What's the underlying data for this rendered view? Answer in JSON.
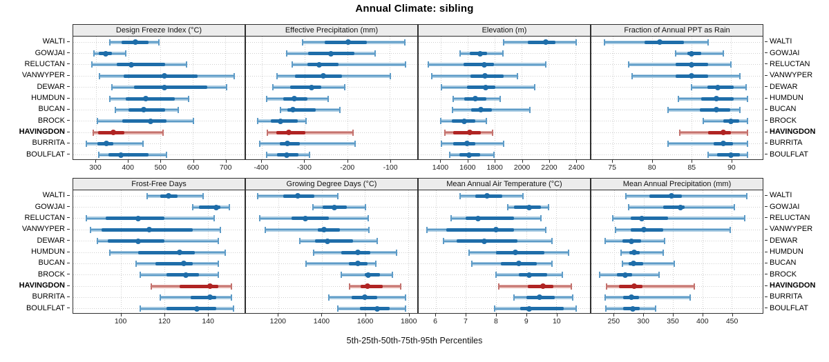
{
  "title": "Annual Climate: sibling",
  "caption": "5th-25th-50th-75th-95th Percentiles",
  "colors": {
    "blue": "#1E6DA9",
    "blue_light": "#A9CBE2",
    "blue_mid": "#5D9BC7",
    "red": "#B02423",
    "red_light": "#E3AEA9",
    "red_mid": "#C4726E",
    "grid": "#CDCDCD",
    "strip_bg": "#ECECEC",
    "border": "#2E2E2E"
  },
  "chart_data": {
    "type": "scatter",
    "subtype": "trellis percentile dot-plot (whisker 5-95, thick band 25-75, dot = median)",
    "title": "Annual Climate: sibling",
    "caption": "5th-25th-50th-75th-95th Percentiles",
    "percentile_labels": [
      "5th",
      "25th",
      "50th",
      "75th",
      "95th"
    ],
    "rows": [
      "WALTI",
      "GOWJAI",
      "RELUCTAN",
      "VANWYPER",
      "DEWAR",
      "HUMDUN",
      "BUCAN",
      "BROCK",
      "HAVINGDON",
      "BURRITA",
      "BOULFLAT"
    ],
    "highlight_row": "HAVINGDON",
    "legend_position": "none",
    "grid": "dotted",
    "panels": [
      {
        "title": "Design Freeze Index (°C)",
        "slug": "design-freeze-index",
        "xlim": [
          230,
          760
        ],
        "ticks": [
          300,
          400,
          500,
          600,
          700
        ],
        "values": [
          [
            343,
            379,
            423,
            463,
            496
          ],
          [
            294,
            310,
            330,
            350,
            393
          ],
          [
            287,
            365,
            410,
            515,
            580
          ],
          [
            312,
            386,
            512,
            614,
            728
          ],
          [
            350,
            417,
            512,
            645,
            704
          ],
          [
            344,
            393,
            454,
            544,
            586
          ],
          [
            360,
            402,
            449,
            515,
            554
          ],
          [
            304,
            382,
            470,
            519,
            602
          ],
          [
            291,
            308,
            354,
            389,
            507
          ],
          [
            270,
            304,
            332,
            354,
            445
          ],
          [
            310,
            340,
            377,
            463,
            519
          ]
        ]
      },
      {
        "title": "Effective Precipitation (mm)",
        "slug": "effective-precipitation",
        "xlim": [
          -437,
          -36
        ],
        "ticks": [
          -400,
          -300,
          -200,
          -100
        ],
        "values": [
          [
            -305,
            -253,
            -198,
            -154,
            -65
          ],
          [
            -342,
            -292,
            -238,
            -183,
            -134
          ],
          [
            -329,
            -293,
            -266,
            -221,
            -63
          ],
          [
            -364,
            -322,
            -256,
            -213,
            -99
          ],
          [
            -374,
            -333,
            -283,
            -261,
            -205
          ],
          [
            -389,
            -349,
            -324,
            -293,
            -244
          ],
          [
            -356,
            -340,
            -327,
            -273,
            -217
          ],
          [
            -410,
            -379,
            -356,
            -316,
            -296
          ],
          [
            -387,
            -366,
            -336,
            -298,
            -187
          ],
          [
            -404,
            -357,
            -340,
            -311,
            -182
          ],
          [
            -389,
            -365,
            -342,
            -314,
            -289
          ]
        ]
      },
      {
        "title": "Elevation (m)",
        "slug": "elevation",
        "xlim": [
          1235,
          2505
        ],
        "ticks": [
          1400,
          1600,
          1800,
          2000,
          2200,
          2400
        ],
        "values": [
          [
            1863,
            2044,
            2176,
            2248,
            2405
          ],
          [
            1544,
            1612,
            1690,
            1744,
            1859
          ],
          [
            1307,
            1566,
            1724,
            1795,
            2176
          ],
          [
            1334,
            1617,
            1727,
            1863,
            1968
          ],
          [
            1402,
            1595,
            1730,
            1803,
            2097
          ],
          [
            1493,
            1575,
            1654,
            1736,
            1837
          ],
          [
            1486,
            1622,
            1698,
            1778,
            2058
          ],
          [
            1397,
            1481,
            1575,
            1656,
            1736
          ],
          [
            1430,
            1493,
            1612,
            1697,
            1781
          ],
          [
            1402,
            1493,
            1595,
            1656,
            1866
          ],
          [
            1464,
            1537,
            1608,
            1690,
            1795
          ]
        ]
      },
      {
        "title": "Fraction of Annual PPT as Rain",
        "slug": "fraction-ppt-as-rain",
        "xlim": [
          72.3,
          94
        ],
        "ticks": [
          75,
          80,
          85,
          90
        ],
        "values": [
          [
            74,
            79,
            81,
            84,
            87.1
          ],
          [
            83,
            84.5,
            85,
            86.2,
            89
          ],
          [
            77,
            83,
            85,
            87.1,
            90
          ],
          [
            77.5,
            83,
            85,
            87.1,
            91.1
          ],
          [
            85,
            87,
            88.3,
            90.3,
            91.9
          ],
          [
            83.3,
            86.2,
            88.1,
            90.3,
            92.1
          ],
          [
            82,
            86,
            88.1,
            89.9,
            91.1
          ],
          [
            86.5,
            89,
            90,
            91,
            92.1
          ],
          [
            83.5,
            87.1,
            89,
            90,
            92.1
          ],
          [
            82,
            87.8,
            89,
            90.2,
            92.1
          ],
          [
            87.1,
            88.2,
            90,
            91.1,
            92.1
          ]
        ]
      },
      {
        "title": "Frost-Free Days",
        "slug": "frost-free-days",
        "xlim": [
          78,
          157
        ],
        "ticks": [
          100,
          120,
          140
        ],
        "values": [
          [
            112,
            118,
            122,
            126,
            138
          ],
          [
            133,
            136,
            144,
            146,
            150
          ],
          [
            84,
            93,
            108,
            120,
            143
          ],
          [
            86,
            91,
            113,
            133,
            146
          ],
          [
            89,
            94,
            108,
            120,
            145
          ],
          [
            95,
            108,
            127,
            134,
            148
          ],
          [
            107,
            116,
            129,
            133,
            145
          ],
          [
            109,
            121,
            130,
            136,
            145
          ],
          [
            114,
            127,
            141,
            145,
            151
          ],
          [
            118,
            132,
            141,
            144,
            151
          ],
          [
            109,
            121,
            135,
            144,
            152
          ]
        ]
      },
      {
        "title": "Growing Degree Days (°C)",
        "slug": "growing-degree-days",
        "xlim": [
          1050,
          1842
        ],
        "ticks": [
          1200,
          1400,
          1600,
          1800
        ],
        "values": [
          [
            1103,
            1223,
            1290,
            1366,
            1474
          ],
          [
            1360,
            1403,
            1458,
            1516,
            1602
          ],
          [
            1114,
            1261,
            1326,
            1432,
            1616
          ],
          [
            1139,
            1381,
            1411,
            1484,
            1618
          ],
          [
            1298,
            1368,
            1426,
            1545,
            1658
          ],
          [
            1363,
            1490,
            1568,
            1626,
            1747
          ],
          [
            1328,
            1526,
            1568,
            1611,
            1651
          ],
          [
            1490,
            1598,
            1614,
            1668,
            1726
          ],
          [
            1528,
            1581,
            1611,
            1682,
            1766
          ],
          [
            1434,
            1539,
            1598,
            1658,
            1787
          ],
          [
            1474,
            1576,
            1656,
            1714,
            1787
          ]
        ]
      },
      {
        "title": "Mean Annual Air Temperature (°C)",
        "slug": "mean-annual-air-temperature",
        "xlim": [
          5.43,
          11.12
        ],
        "ticks": [
          6,
          7,
          8,
          9,
          10
        ],
        "values": [
          [
            6.8,
            7.3,
            7.7,
            8.2,
            8.9
          ],
          [
            8.4,
            8.6,
            9.1,
            9.5,
            9.75
          ],
          [
            6.5,
            7.0,
            7.4,
            8.6,
            9.5
          ],
          [
            5.7,
            6.35,
            8.0,
            8.6,
            9.65
          ],
          [
            6.25,
            6.7,
            7.6,
            8.7,
            9.85
          ],
          [
            7.1,
            8.0,
            8.65,
            9.6,
            10.4
          ],
          [
            7.2,
            8.15,
            8.75,
            9.35,
            9.85
          ],
          [
            8.0,
            8.75,
            9.1,
            9.7,
            10.2
          ],
          [
            8.1,
            9.05,
            9.55,
            9.9,
            10.5
          ],
          [
            8.6,
            9.0,
            9.45,
            9.95,
            10.55
          ],
          [
            7.95,
            8.8,
            9.1,
            10.25,
            10.65
          ]
        ]
      },
      {
        "title": "Mean Annual Precipitation (mm)",
        "slug": "mean-annual-precipitation",
        "xlim": [
          211,
          503
        ],
        "ticks": [
          250,
          300,
          350,
          400,
          450
        ],
        "values": [
          [
            270,
            310,
            348,
            365,
            476
          ],
          [
            274,
            333,
            363,
            370,
            455
          ],
          [
            248,
            278,
            297,
            342,
            472
          ],
          [
            252,
            278,
            300,
            334,
            448
          ],
          [
            235,
            264,
            279,
            296,
            336
          ],
          [
            262,
            276,
            284,
            294,
            334
          ],
          [
            264,
            274,
            283,
            299,
            352
          ],
          [
            225,
            255,
            269,
            281,
            326
          ],
          [
            237,
            258,
            284,
            298,
            387
          ],
          [
            234,
            265,
            279,
            292,
            379
          ],
          [
            236,
            265,
            282,
            294,
            321
          ]
        ]
      }
    ]
  }
}
